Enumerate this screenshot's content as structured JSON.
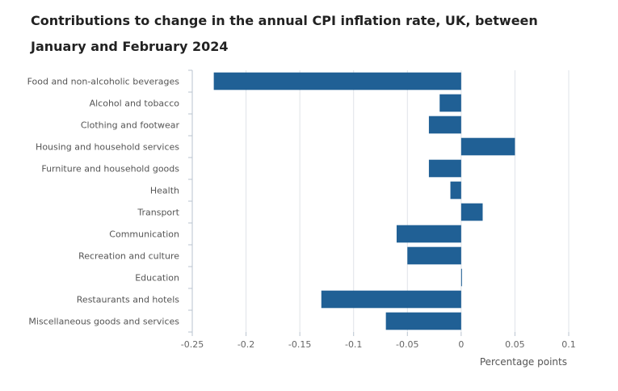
{
  "title": "Contributions to change in the annual CPI inflation rate, UK, between January and February 2024",
  "colors": {
    "bar": "#206095",
    "grid": "#dfe3e8",
    "axis": "#b8c3cf",
    "text": "#555555"
  },
  "chart_data": {
    "type": "bar",
    "orientation": "horizontal",
    "title": "Contributions to change in the annual CPI inflation rate, UK, between January and February 2024",
    "xlabel": "Percentage points",
    "ylabel": "",
    "xlim": [
      -0.25,
      0.1
    ],
    "xticks": [
      -0.25,
      -0.2,
      -0.15,
      -0.1,
      -0.05,
      0,
      0.05,
      0.1
    ],
    "xtick_labels": [
      "-0.25",
      "-0.2",
      "-0.15",
      "-0.1",
      "-0.05",
      "0",
      "0.05",
      "0.1"
    ],
    "grid": true,
    "categories": [
      "Food and non-alcoholic beverages",
      "Alcohol and tobacco",
      "Clothing and footwear",
      "Housing and household services",
      "Furniture and household goods",
      "Health",
      "Transport",
      "Communication",
      "Recreation and culture",
      "Education",
      "Restaurants and hotels",
      "Miscellaneous goods and services"
    ],
    "values": [
      -0.23,
      -0.02,
      -0.03,
      0.05,
      -0.03,
      -0.01,
      0.02,
      -0.06,
      -0.05,
      0.0,
      -0.13,
      -0.07
    ]
  }
}
